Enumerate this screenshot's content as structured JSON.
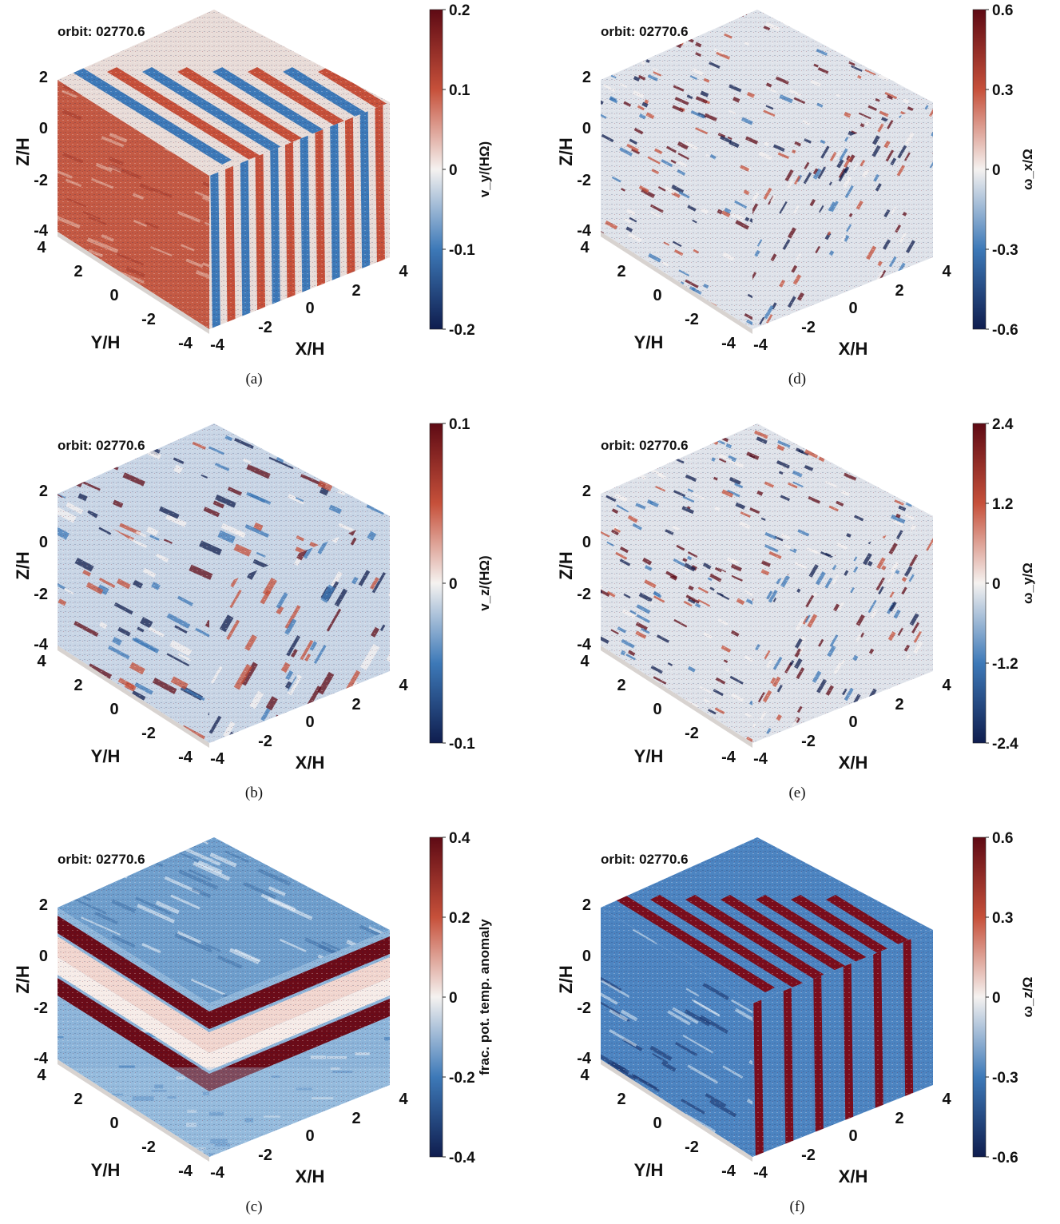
{
  "figure": {
    "panels": [
      {
        "id": "a",
        "caption": "(a)",
        "orbit_label": "orbit: 02770.6",
        "x_axis_label": "X/H",
        "y_axis_label": "Y/H",
        "z_axis_label": "Z/H",
        "x_ticks": [
          "-4",
          "-2",
          "0",
          "2",
          "4"
        ],
        "y_ticks": [
          "4",
          "2",
          "0",
          "-2",
          "-4"
        ],
        "z_ticks": [
          "2",
          "0",
          "-2",
          "-4"
        ],
        "colorbar_label": "v_y/(HΩ)",
        "colorbar_ticks": [
          "0.2",
          "0.1",
          "0",
          "-0.1",
          "-0.2"
        ],
        "pattern": "vertical-bands"
      },
      {
        "id": "b",
        "caption": "(b)",
        "orbit_label": "orbit: 02770.6",
        "x_axis_label": "X/H",
        "y_axis_label": "Y/H",
        "z_axis_label": "Z/H",
        "x_ticks": [
          "-4",
          "-2",
          "0",
          "2",
          "4"
        ],
        "y_ticks": [
          "4",
          "2",
          "0",
          "-2",
          "-4"
        ],
        "z_ticks": [
          "2",
          "0",
          "-2",
          "-4"
        ],
        "colorbar_label": "v_z/(HΩ)",
        "colorbar_ticks": [
          "0.1",
          "0",
          "-0.1"
        ],
        "pattern": "turbulent"
      },
      {
        "id": "c",
        "caption": "(c)",
        "orbit_label": "orbit: 02770.6",
        "x_axis_label": "X/H",
        "y_axis_label": "Y/H",
        "z_axis_label": "Z/H",
        "x_ticks": [
          "-4",
          "-2",
          "0",
          "2",
          "4"
        ],
        "y_ticks": [
          "4",
          "2",
          "0",
          "-2",
          "-4"
        ],
        "z_ticks": [
          "2",
          "0",
          "-2",
          "-4"
        ],
        "colorbar_label": "frac. pot. temp. anomaly",
        "colorbar_ticks": [
          "0.4",
          "0.2",
          "0",
          "-0.2",
          "-0.4"
        ],
        "pattern": "horizontal-layers"
      },
      {
        "id": "d",
        "caption": "(d)",
        "orbit_label": "orbit: 02770.6",
        "x_axis_label": "X/H",
        "y_axis_label": "Y/H",
        "z_axis_label": "Z/H",
        "x_ticks": [
          "-4",
          "-2",
          "0",
          "2",
          "4"
        ],
        "y_ticks": [
          "4",
          "2",
          "0",
          "-2",
          "-4"
        ],
        "z_ticks": [
          "2",
          "0",
          "-2",
          "-4"
        ],
        "colorbar_label": "ω_x/Ω",
        "colorbar_ticks": [
          "0.6",
          "0.3",
          "0",
          "-0.3",
          "-0.6"
        ],
        "pattern": "fine-turbulent"
      },
      {
        "id": "e",
        "caption": "(e)",
        "orbit_label": "orbit: 02770.6",
        "x_axis_label": "X/H",
        "y_axis_label": "Y/H",
        "z_axis_label": "Z/H",
        "x_ticks": [
          "-4",
          "-2",
          "0",
          "2",
          "4"
        ],
        "y_ticks": [
          "4",
          "2",
          "0",
          "-2",
          "-4"
        ],
        "z_ticks": [
          "2",
          "0",
          "-2",
          "-4"
        ],
        "colorbar_label": "ω_y/Ω",
        "colorbar_ticks": [
          "2.4",
          "1.2",
          "0",
          "-1.2",
          "-2.4"
        ],
        "pattern": "fine-turbulent"
      },
      {
        "id": "f",
        "caption": "(f)",
        "orbit_label": "orbit: 02770.6",
        "x_axis_label": "X/H",
        "y_axis_label": "Y/H",
        "z_axis_label": "Z/H",
        "x_ticks": [
          "-4",
          "-2",
          "0",
          "2",
          "4"
        ],
        "y_ticks": [
          "4",
          "2",
          "0",
          "-2",
          "-4"
        ],
        "z_ticks": [
          "2",
          "0",
          "-2",
          "-4"
        ],
        "colorbar_label": "ω_z/Ω",
        "colorbar_ticks": [
          "0.6",
          "0.3",
          "0",
          "-0.3",
          "-0.6"
        ],
        "pattern": "vertical-bands-fine"
      }
    ],
    "colors": {
      "max": "#5e0a14",
      "high": "#c6503a",
      "mid": "#f5f2f0",
      "low": "#3d79b8",
      "min": "#0f1d4e"
    }
  }
}
